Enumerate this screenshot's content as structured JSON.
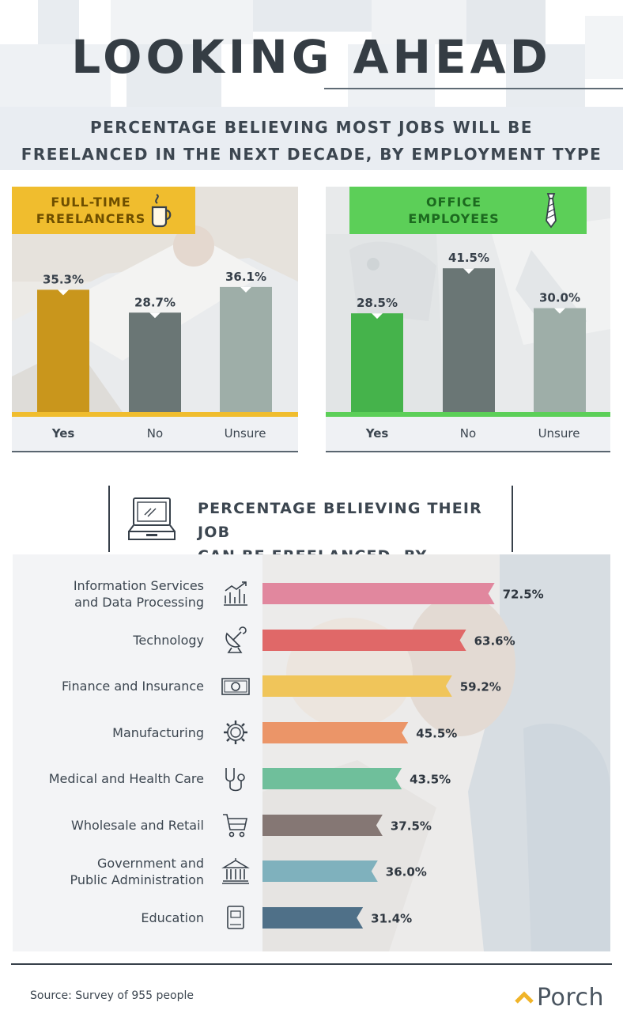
{
  "header": {
    "title": "LOOKING AHEAD",
    "subtitle_lines": [
      "PERCENTAGE BELIEVING MOST JOBS WILL BE",
      "FREELANCED IN THE NEXT DECADE, BY EMPLOYMENT TYPE"
    ]
  },
  "panels": {
    "freelancers": {
      "label_lines": [
        "FULL-TIME",
        "FREELANCERS"
      ],
      "icon": "coffee-cup-icon",
      "accent": "#f0bd2e",
      "label_text_color": "#6e4f00"
    },
    "office": {
      "label_lines": [
        "OFFICE",
        "EMPLOYEES"
      ],
      "icon": "necktie-icon",
      "accent": "#5ccf58",
      "label_text_color": "#1c6a1f"
    }
  },
  "industry": {
    "title_lines": [
      "PERCENTAGE BELIEVING THEIR JOB",
      "CAN BE FREELANCED, BY INDUSTRY"
    ],
    "icon": "laptop-icon"
  },
  "footer": {
    "source": "Source: Survey of 955 people",
    "brand": "Porch"
  },
  "chart_data": [
    {
      "type": "bar",
      "categories": [
        "Yes",
        "No",
        "Unsure"
      ],
      "values": [
        35.3,
        28.7,
        36.1
      ],
      "value_labels": [
        "35.3%",
        "28.7%",
        "36.1%"
      ],
      "colors": [
        "#c9961c",
        "#6a7675",
        "#9eaea8"
      ],
      "ylim": [
        0,
        50
      ]
    },
    {
      "type": "bar",
      "categories": [
        "Yes",
        "No",
        "Unsure"
      ],
      "values": [
        28.5,
        41.5,
        30.0
      ],
      "value_labels": [
        "28.5%",
        "41.5%",
        "30.0%"
      ],
      "colors": [
        "#45b34b",
        "#6a7675",
        "#9eaea8"
      ],
      "ylim": [
        0,
        50
      ]
    },
    {
      "type": "bar",
      "orientation": "horizontal",
      "categories": [
        [
          "Information Services",
          "and Data Processing"
        ],
        [
          "Technology"
        ],
        [
          "Finance and Insurance"
        ],
        [
          "Manufacturing"
        ],
        [
          "Medical and Health Care"
        ],
        [
          "Wholesale and Retail"
        ],
        [
          "Government and",
          "Public Administration"
        ],
        [
          "Education"
        ]
      ],
      "icons": [
        "line-chart-icon",
        "satellite-dish-icon",
        "banknote-icon",
        "gear-icon",
        "stethoscope-icon",
        "shopping-cart-icon",
        "government-building-icon",
        "book-icon"
      ],
      "values": [
        72.5,
        63.6,
        59.2,
        45.5,
        43.5,
        37.5,
        36.0,
        31.4
      ],
      "value_labels": [
        "72.5%",
        "63.6%",
        "59.2%",
        "45.5%",
        "43.5%",
        "37.5%",
        "36.0%",
        "31.4%"
      ],
      "colors": [
        "#e1879e",
        "#e06868",
        "#f0c55a",
        "#eb9568",
        "#6fbf9b",
        "#857774",
        "#7fb1bd",
        "#4f7088"
      ],
      "xlim": [
        0,
        100
      ]
    }
  ]
}
